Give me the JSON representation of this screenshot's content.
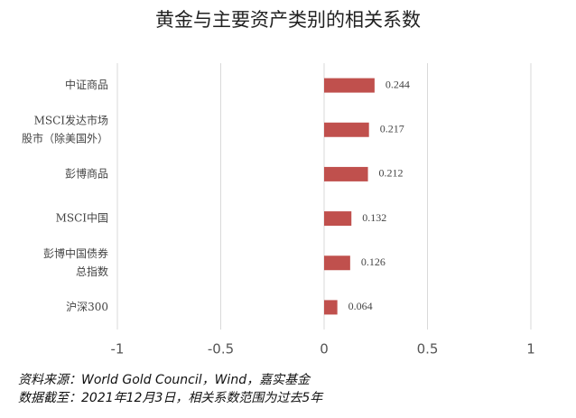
{
  "chart_data": {
    "type": "bar",
    "orientation": "horizontal",
    "title": "黄金与主要资产类别的相关系数",
    "categories": [
      [
        "中证商品"
      ],
      [
        "MSCI发达市场",
        "股市（除美国外）"
      ],
      [
        "彭博商品"
      ],
      [
        "MSCI中国"
      ],
      [
        "彭博中国债券",
        "总指数"
      ],
      [
        "沪深300"
      ]
    ],
    "values": [
      0.244,
      0.217,
      0.212,
      0.132,
      0.126,
      0.064
    ],
    "color": "#c0504d",
    "xlim": [
      -1,
      1
    ],
    "xticks": [
      -1,
      -0.5,
      0,
      0.5,
      1
    ],
    "grid": true
  },
  "notes": [
    "资料来源：World Gold Council，Wind，嘉实基金",
    "数据截至：2021年12月3日，相关系数范围为过去5年"
  ]
}
